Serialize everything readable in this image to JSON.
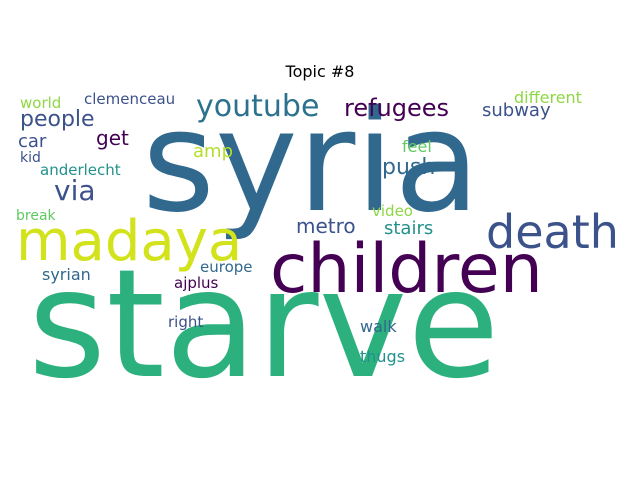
{
  "figure": {
    "title": "Topic #8"
  },
  "words": [
    {
      "text": "syria",
      "color": "#31688e"
    },
    {
      "text": "starve",
      "color": "#2cb17e"
    },
    {
      "text": "children",
      "color": "#440154"
    },
    {
      "text": "madaya",
      "color": "#d2e21b"
    },
    {
      "text": "death",
      "color": "#3b528b"
    },
    {
      "text": "youtube",
      "color": "#2c728e"
    },
    {
      "text": "refugees",
      "color": "#440154"
    },
    {
      "text": "people",
      "color": "#3b528b"
    },
    {
      "text": "via",
      "color": "#3b528b"
    },
    {
      "text": "push",
      "color": "#31688e"
    },
    {
      "text": "metro",
      "color": "#3b528b"
    },
    {
      "text": "stairs",
      "color": "#21918c"
    },
    {
      "text": "get",
      "color": "#440154"
    },
    {
      "text": "car",
      "color": "#3b528b"
    },
    {
      "text": "subway",
      "color": "#3b528b"
    },
    {
      "text": "different",
      "color": "#8fd744"
    },
    {
      "text": "clemenceau",
      "color": "#3b528b"
    },
    {
      "text": "world",
      "color": "#8fd744"
    },
    {
      "text": "amp",
      "color": "#b5de2b"
    },
    {
      "text": "feel",
      "color": "#5ec962"
    },
    {
      "text": "kid",
      "color": "#3b528b"
    },
    {
      "text": "anderlecht",
      "color": "#21918c"
    },
    {
      "text": "break",
      "color": "#5ec962"
    },
    {
      "text": "video",
      "color": "#8fd744"
    },
    {
      "text": "syrian",
      "color": "#31688e"
    },
    {
      "text": "europe",
      "color": "#31688e"
    },
    {
      "text": "ajplus",
      "color": "#440154"
    },
    {
      "text": "right",
      "color": "#3b528b"
    },
    {
      "text": "walk",
      "color": "#31688e"
    },
    {
      "text": "thugs",
      "color": "#21918c"
    }
  ]
}
